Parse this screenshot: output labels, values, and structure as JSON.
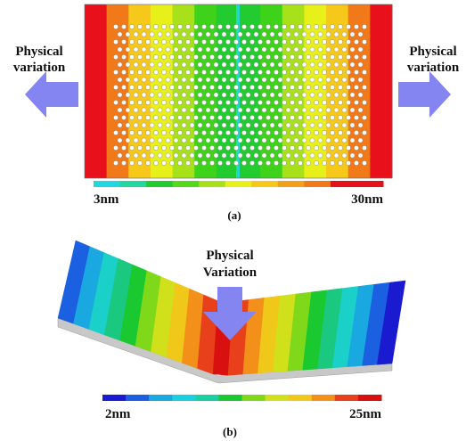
{
  "panel_a": {
    "left_label_lines": [
      "Physical",
      "variation"
    ],
    "right_label_lines": [
      "Physical",
      "variation"
    ],
    "colorbar_min": "3nm",
    "colorbar_max": "30nm",
    "caption": "(a)"
  },
  "panel_b": {
    "arrow_label_lines": [
      "Physical",
      "Variation"
    ],
    "colorbar_min": "2nm",
    "colorbar_max": "25nm",
    "caption": "(b)"
  }
}
